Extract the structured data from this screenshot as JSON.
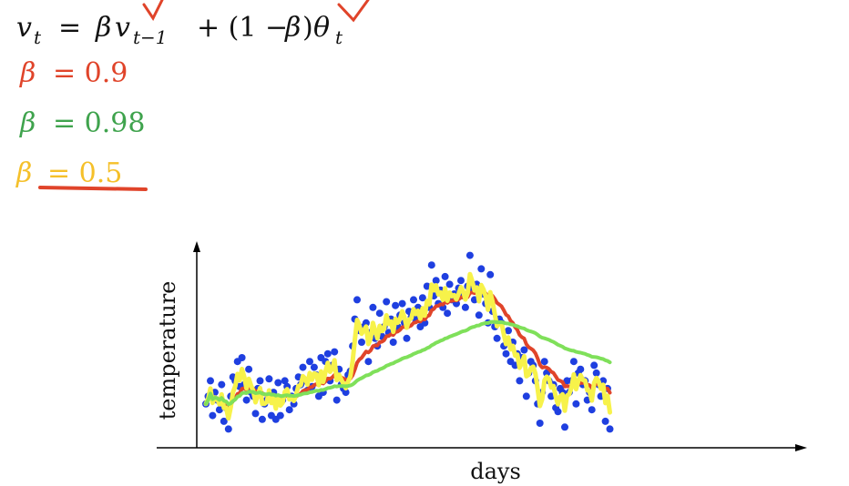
{
  "formula": {
    "v": "v",
    "t_sub": "t",
    "equals": "=",
    "beta": "β",
    "t_minus_1_sub": "t−1",
    "plus_one_minus": "+ (1 −",
    "close_paren": ")",
    "theta": "θ"
  },
  "betas": [
    {
      "beta": "β",
      "rhs": "= 0.9",
      "color": "#e0442a"
    },
    {
      "beta": "β",
      "rhs": "= 0.98",
      "color": "#3fa34d"
    },
    {
      "beta": "β",
      "rhs": "= 0.5",
      "color": "#f5c02a"
    }
  ],
  "annotation_color": "#e0442a",
  "chart_data": {
    "type": "scatter",
    "xlabel": "days",
    "ylabel": "temperature",
    "x_range": [
      0,
      180
    ],
    "y_range": [
      0,
      100
    ],
    "grid": false,
    "points_color": "#1f3fe0",
    "points": [
      [
        0,
        18
      ],
      [
        1,
        22
      ],
      [
        2,
        30
      ],
      [
        3,
        12
      ],
      [
        4,
        24
      ],
      [
        5,
        20
      ],
      [
        6,
        15
      ],
      [
        7,
        28
      ],
      [
        8,
        9
      ],
      [
        9,
        16
      ],
      [
        10,
        5
      ],
      [
        11,
        22
      ],
      [
        12,
        32
      ],
      [
        13,
        30
      ],
      [
        14,
        40
      ],
      [
        15,
        27
      ],
      [
        16,
        42
      ],
      [
        17,
        28
      ],
      [
        18,
        20
      ],
      [
        19,
        36
      ],
      [
        20,
        24
      ],
      [
        21,
        22
      ],
      [
        22,
        13
      ],
      [
        23,
        26
      ],
      [
        24,
        30
      ],
      [
        25,
        10
      ],
      [
        26,
        18
      ],
      [
        27,
        20
      ],
      [
        28,
        31
      ],
      [
        29,
        12
      ],
      [
        30,
        24
      ],
      [
        31,
        10
      ],
      [
        32,
        29
      ],
      [
        33,
        12
      ],
      [
        34,
        20
      ],
      [
        35,
        30
      ],
      [
        36,
        27
      ],
      [
        37,
        15
      ],
      [
        38,
        22
      ],
      [
        39,
        18
      ],
      [
        40,
        26
      ],
      [
        41,
        32
      ],
      [
        42,
        28
      ],
      [
        43,
        37
      ],
      [
        44,
        30
      ],
      [
        45,
        25
      ],
      [
        46,
        40
      ],
      [
        47,
        27
      ],
      [
        48,
        37
      ],
      [
        49,
        33
      ],
      [
        50,
        22
      ],
      [
        51,
        42
      ],
      [
        52,
        24
      ],
      [
        53,
        40
      ],
      [
        54,
        44
      ],
      [
        55,
        30
      ],
      [
        56,
        38
      ],
      [
        57,
        45
      ],
      [
        58,
        20
      ],
      [
        59,
        36
      ],
      [
        60,
        28
      ],
      [
        61,
        26
      ],
      [
        62,
        24
      ],
      [
        63,
        33
      ],
      [
        64,
        35
      ],
      [
        65,
        48
      ],
      [
        66,
        62
      ],
      [
        67,
        72
      ],
      [
        68,
        56
      ],
      [
        69,
        50
      ],
      [
        70,
        58
      ],
      [
        71,
        60
      ],
      [
        72,
        40
      ],
      [
        73,
        55
      ],
      [
        74,
        68
      ],
      [
        75,
        52
      ],
      [
        76,
        48
      ],
      [
        77,
        65
      ],
      [
        78,
        53
      ],
      [
        79,
        58
      ],
      [
        80,
        71
      ],
      [
        81,
        55
      ],
      [
        82,
        62
      ],
      [
        83,
        50
      ],
      [
        84,
        69
      ],
      [
        85,
        58
      ],
      [
        86,
        64
      ],
      [
        87,
        70
      ],
      [
        88,
        60
      ],
      [
        89,
        52
      ],
      [
        90,
        66
      ],
      [
        91,
        63
      ],
      [
        92,
        72
      ],
      [
        93,
        62
      ],
      [
        94,
        68
      ],
      [
        95,
        58
      ],
      [
        96,
        73
      ],
      [
        97,
        60
      ],
      [
        98,
        79
      ],
      [
        99,
        68
      ],
      [
        100,
        90
      ],
      [
        101,
        74
      ],
      [
        102,
        82
      ],
      [
        103,
        70
      ],
      [
        104,
        77
      ],
      [
        105,
        68
      ],
      [
        106,
        84
      ],
      [
        107,
        65
      ],
      [
        108,
        80
      ],
      [
        109,
        72
      ],
      [
        110,
        75
      ],
      [
        111,
        70
      ],
      [
        112,
        78
      ],
      [
        113,
        82
      ],
      [
        114,
        74
      ],
      [
        115,
        68
      ],
      [
        116,
        79
      ],
      [
        117,
        95
      ],
      [
        118,
        78
      ],
      [
        119,
        72
      ],
      [
        120,
        80
      ],
      [
        121,
        64
      ],
      [
        122,
        88
      ],
      [
        123,
        75
      ],
      [
        124,
        70
      ],
      [
        125,
        60
      ],
      [
        126,
        85
      ],
      [
        127,
        66
      ],
      [
        128,
        58
      ],
      [
        129,
        52
      ],
      [
        130,
        62
      ],
      [
        131,
        60
      ],
      [
        132,
        48
      ],
      [
        133,
        44
      ],
      [
        134,
        56
      ],
      [
        135,
        40
      ],
      [
        136,
        50
      ],
      [
        137,
        38
      ],
      [
        138,
        44
      ],
      [
        139,
        30
      ],
      [
        140,
        42
      ],
      [
        141,
        46
      ],
      [
        142,
        22
      ],
      [
        143,
        34
      ],
      [
        144,
        40
      ],
      [
        145,
        38
      ],
      [
        146,
        30
      ],
      [
        147,
        18
      ],
      [
        148,
        8
      ],
      [
        149,
        24
      ],
      [
        150,
        40
      ],
      [
        151,
        34
      ],
      [
        152,
        30
      ],
      [
        153,
        22
      ],
      [
        154,
        28
      ],
      [
        155,
        16
      ],
      [
        156,
        14
      ],
      [
        157,
        26
      ],
      [
        158,
        24
      ],
      [
        159,
        6
      ],
      [
        160,
        30
      ],
      [
        161,
        24
      ],
      [
        162,
        30
      ],
      [
        163,
        40
      ],
      [
        164,
        18
      ],
      [
        165,
        34
      ],
      [
        166,
        36
      ],
      [
        167,
        28
      ],
      [
        168,
        30
      ],
      [
        169,
        20
      ],
      [
        170,
        24
      ],
      [
        171,
        15
      ],
      [
        172,
        38
      ],
      [
        173,
        34
      ],
      [
        174,
        28
      ],
      [
        175,
        22
      ],
      [
        176,
        30
      ],
      [
        177,
        9
      ],
      [
        178,
        26
      ],
      [
        179,
        5
      ]
    ],
    "series": [
      {
        "color": "#e0442a",
        "smoothing": 0.9,
        "stroke": 4
      },
      {
        "color": "#7fe05a",
        "smoothing": 0.98,
        "stroke": 4
      },
      {
        "color": "#f7f24a",
        "smoothing": 0.5,
        "stroke": 5
      }
    ]
  }
}
